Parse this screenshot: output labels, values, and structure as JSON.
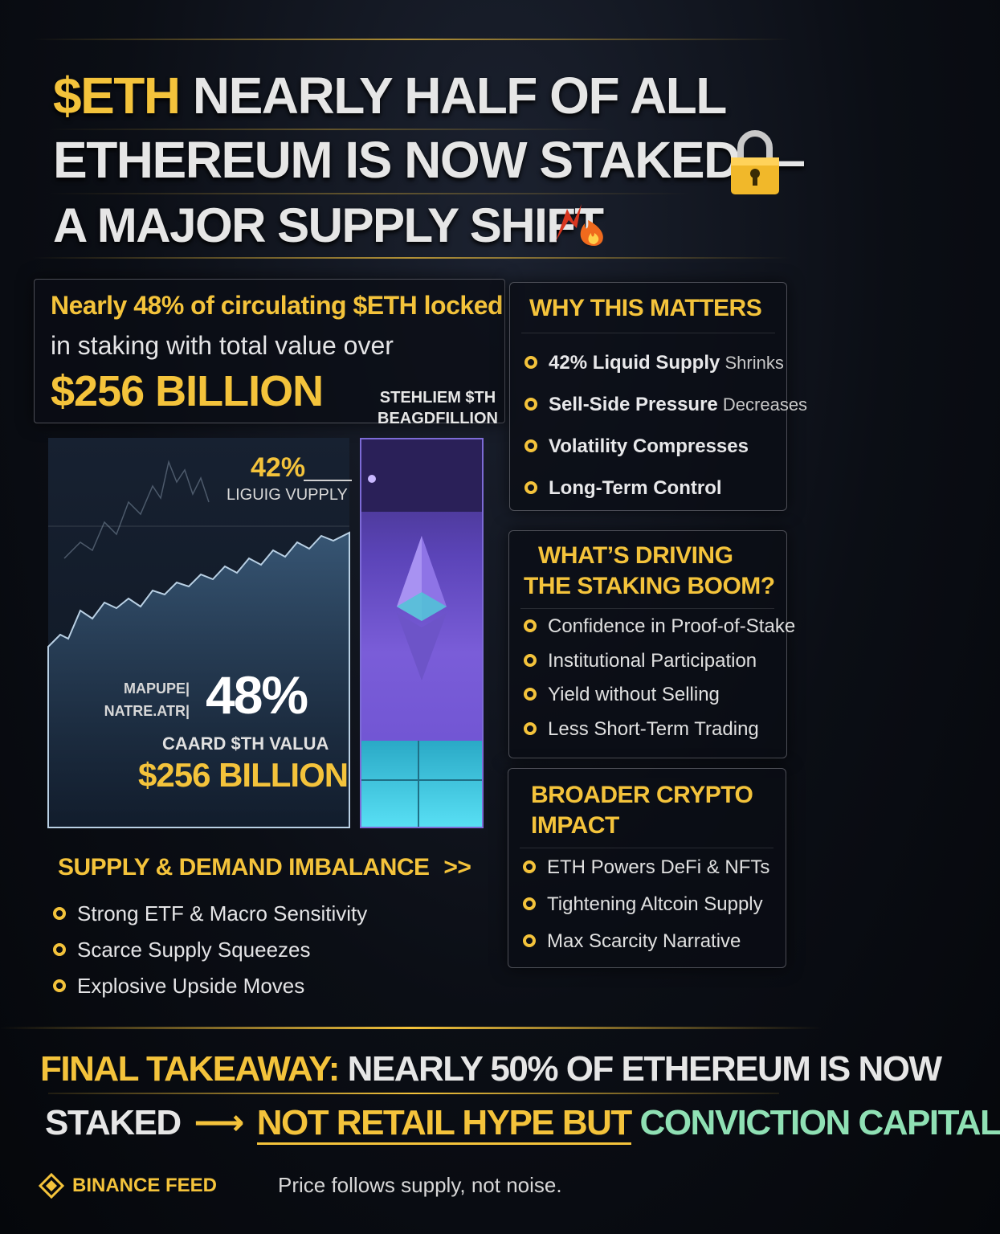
{
  "header": {
    "line1_ticker": "$ETH",
    "line1_rest": "NEARLY HALF OF ALL",
    "line2": "ETHEREUM IS NOW STAKED —",
    "line3": "A MAJOR SUPPLY SHIFT",
    "lock_icon": "lock-icon",
    "fire_icon": "fire-icon"
  },
  "intro": {
    "line1": "Nearly 48% of circulating $ETH locked",
    "line2": "in staking with total value over",
    "amount": "$256 BILLION"
  },
  "visual": {
    "bar_label_line1": "STEHLIEM $TH",
    "bar_label_line2": "BEAGDFILLION",
    "liquid_pct": "42%",
    "liquid_label": "LIGUIG VUPPLY",
    "side_label_line1": "MAPUPE|",
    "side_label_line2": "NATRE.ATR|",
    "staked_pct": "48%",
    "value_label": "CAARD $TH VALUA",
    "value_amount": "$256 BILLION"
  },
  "why": {
    "title": "WHY THIS MATTERS",
    "items": [
      {
        "bold": "42% Liquid Supply",
        "rest": " Shrinks"
      },
      {
        "bold": "Sell-Side Pressure",
        "rest": " Decreases"
      },
      {
        "bold": "Volatility Compresses",
        "rest": ""
      },
      {
        "bold": "Long-Term Control",
        "rest": ""
      }
    ]
  },
  "driving": {
    "title_line1": "WHAT’S DRIVING",
    "title_line2": "THE STAKING BOOM?",
    "items": [
      "Confidence in Proof-of-Stake",
      "Institutional Participation",
      "Yield without Selling",
      "Less Short-Term Trading"
    ]
  },
  "broader": {
    "title_line1": "BROADER CRYPTO",
    "title_line2": "IMPACT",
    "items": [
      "ETH Powers DeFi & NFTs",
      "Tightening Altcoin Supply",
      "Max Scarcity Narrative"
    ]
  },
  "imbalance": {
    "title": "SUPPLY & DEMAND IMBALANCE",
    "arrow": ">>",
    "items": [
      "Strong ETF & Macro Sensitivity",
      "Scarce Supply Squeezes",
      "Explosive Upside Moves"
    ]
  },
  "final": {
    "label": "FINAL TAKEAWAY:",
    "line1_rest": "NEARLY 50% OF ETHEREUM IS NOW",
    "line2_start": "STAKED",
    "line2_mid": "NOT RETAIL HYPE BUT",
    "line2_end": "CONVICTION CAPITAL"
  },
  "brand": {
    "name": "BINANCE FEED",
    "tagline": "Price follows supply, not noise."
  },
  "colors": {
    "gold": "#f4c33b",
    "green": "#8fe0b4",
    "purple": "#7a5dd8",
    "cyan": "#4fd6ee"
  }
}
